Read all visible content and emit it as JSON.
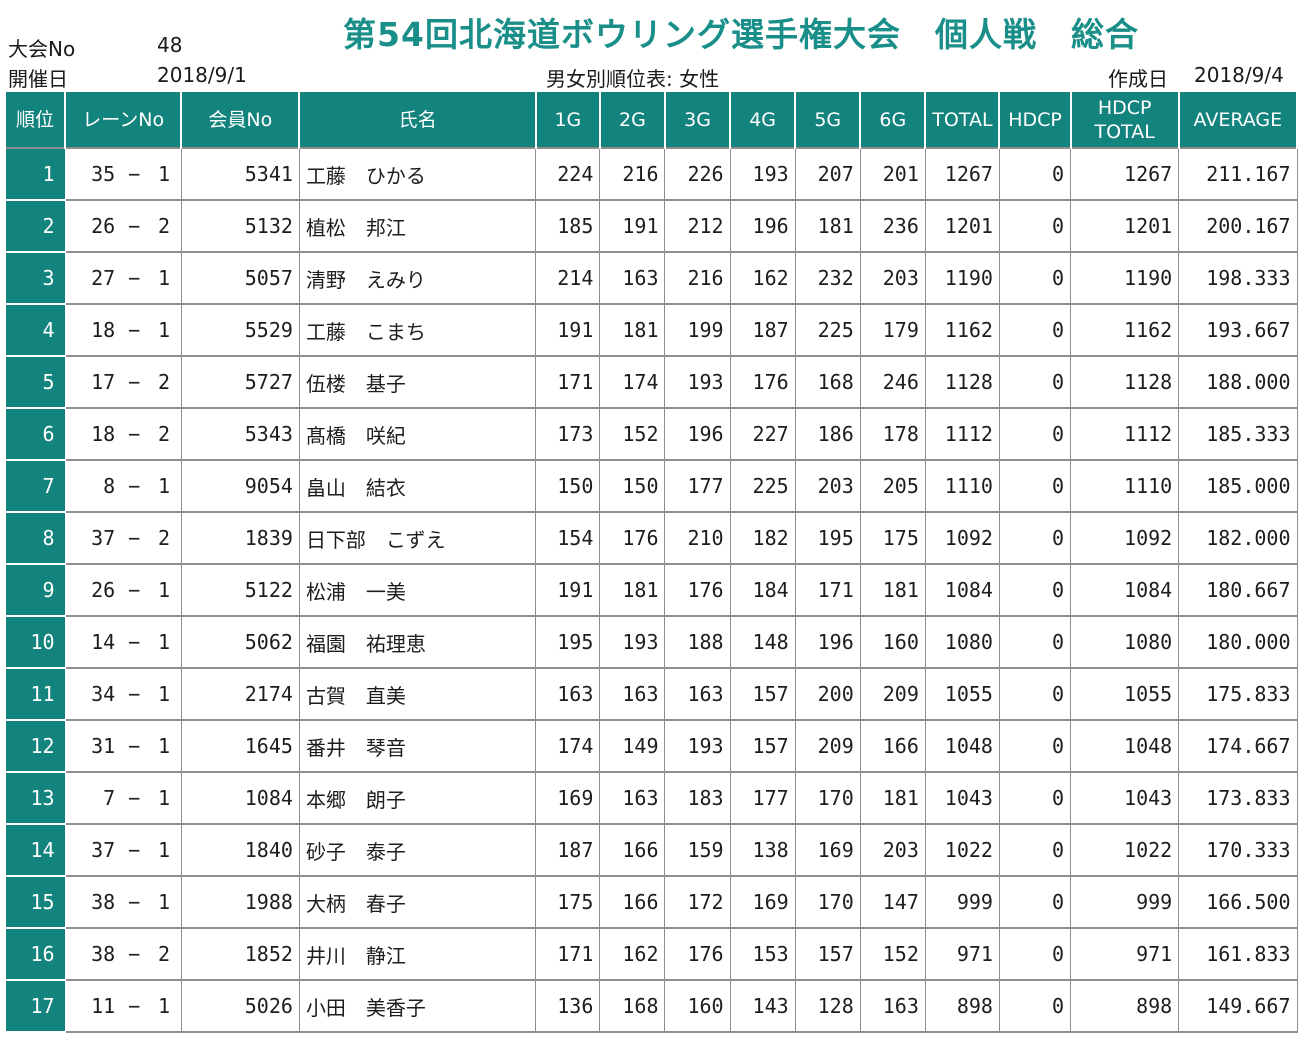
{
  "title": "第54回北海道ボウリング選手権大会　個人戦　総合",
  "meta": {
    "tournament_no_label": "大会No",
    "tournament_no": "48",
    "date_label": "開催日",
    "date": "2018/9/1",
    "ranking_label": "男女別順位表: 女性",
    "created_label": "作成日",
    "created_date": "2018/9/4"
  },
  "columns": [
    "順位",
    "レーンNo",
    "会員No",
    "氏名",
    "1G",
    "2G",
    "3G",
    "4G",
    "5G",
    "6G",
    "TOTAL",
    "HDCP",
    "HDCP\nTOTAL",
    "AVERAGE"
  ],
  "lane_separator": "−",
  "rows": [
    {
      "rank": "1",
      "lane": "35",
      "lane_no": "1",
      "member": "5341",
      "name": "工藤　ひかる",
      "g": [
        "224",
        "216",
        "226",
        "193",
        "207",
        "201"
      ],
      "total": "1267",
      "hdcp": "0",
      "hdcp_total": "1267",
      "average": "211.167"
    },
    {
      "rank": "2",
      "lane": "26",
      "lane_no": "2",
      "member": "5132",
      "name": "植松　邦江",
      "g": [
        "185",
        "191",
        "212",
        "196",
        "181",
        "236"
      ],
      "total": "1201",
      "hdcp": "0",
      "hdcp_total": "1201",
      "average": "200.167"
    },
    {
      "rank": "3",
      "lane": "27",
      "lane_no": "1",
      "member": "5057",
      "name": "清野　えみり",
      "g": [
        "214",
        "163",
        "216",
        "162",
        "232",
        "203"
      ],
      "total": "1190",
      "hdcp": "0",
      "hdcp_total": "1190",
      "average": "198.333"
    },
    {
      "rank": "4",
      "lane": "18",
      "lane_no": "1",
      "member": "5529",
      "name": "工藤　こまち",
      "g": [
        "191",
        "181",
        "199",
        "187",
        "225",
        "179"
      ],
      "total": "1162",
      "hdcp": "0",
      "hdcp_total": "1162",
      "average": "193.667"
    },
    {
      "rank": "5",
      "lane": "17",
      "lane_no": "2",
      "member": "5727",
      "name": "伍楼　基子",
      "g": [
        "171",
        "174",
        "193",
        "176",
        "168",
        "246"
      ],
      "total": "1128",
      "hdcp": "0",
      "hdcp_total": "1128",
      "average": "188.000"
    },
    {
      "rank": "6",
      "lane": "18",
      "lane_no": "2",
      "member": "5343",
      "name": "髙橋　咲紀",
      "g": [
        "173",
        "152",
        "196",
        "227",
        "186",
        "178"
      ],
      "total": "1112",
      "hdcp": "0",
      "hdcp_total": "1112",
      "average": "185.333"
    },
    {
      "rank": "7",
      "lane": "8",
      "lane_no": "1",
      "member": "9054",
      "name": "畠山　結衣",
      "g": [
        "150",
        "150",
        "177",
        "225",
        "203",
        "205"
      ],
      "total": "1110",
      "hdcp": "0",
      "hdcp_total": "1110",
      "average": "185.000"
    },
    {
      "rank": "8",
      "lane": "37",
      "lane_no": "2",
      "member": "1839",
      "name": "日下部　こずえ",
      "g": [
        "154",
        "176",
        "210",
        "182",
        "195",
        "175"
      ],
      "total": "1092",
      "hdcp": "0",
      "hdcp_total": "1092",
      "average": "182.000"
    },
    {
      "rank": "9",
      "lane": "26",
      "lane_no": "1",
      "member": "5122",
      "name": "松浦　一美",
      "g": [
        "191",
        "181",
        "176",
        "184",
        "171",
        "181"
      ],
      "total": "1084",
      "hdcp": "0",
      "hdcp_total": "1084",
      "average": "180.667"
    },
    {
      "rank": "10",
      "lane": "14",
      "lane_no": "1",
      "member": "5062",
      "name": "福園　祐理恵",
      "g": [
        "195",
        "193",
        "188",
        "148",
        "196",
        "160"
      ],
      "total": "1080",
      "hdcp": "0",
      "hdcp_total": "1080",
      "average": "180.000"
    },
    {
      "rank": "11",
      "lane": "34",
      "lane_no": "1",
      "member": "2174",
      "name": "古賀　直美",
      "g": [
        "163",
        "163",
        "163",
        "157",
        "200",
        "209"
      ],
      "total": "1055",
      "hdcp": "0",
      "hdcp_total": "1055",
      "average": "175.833"
    },
    {
      "rank": "12",
      "lane": "31",
      "lane_no": "1",
      "member": "1645",
      "name": "番井　琴音",
      "g": [
        "174",
        "149",
        "193",
        "157",
        "209",
        "166"
      ],
      "total": "1048",
      "hdcp": "0",
      "hdcp_total": "1048",
      "average": "174.667"
    },
    {
      "rank": "13",
      "lane": "7",
      "lane_no": "1",
      "member": "1084",
      "name": "本郷　朗子",
      "g": [
        "169",
        "163",
        "183",
        "177",
        "170",
        "181"
      ],
      "total": "1043",
      "hdcp": "0",
      "hdcp_total": "1043",
      "average": "173.833"
    },
    {
      "rank": "14",
      "lane": "37",
      "lane_no": "1",
      "member": "1840",
      "name": "砂子　泰子",
      "g": [
        "187",
        "166",
        "159",
        "138",
        "169",
        "203"
      ],
      "total": "1022",
      "hdcp": "0",
      "hdcp_total": "1022",
      "average": "170.333"
    },
    {
      "rank": "15",
      "lane": "38",
      "lane_no": "1",
      "member": "1988",
      "name": "大柄　春子",
      "g": [
        "175",
        "166",
        "172",
        "169",
        "170",
        "147"
      ],
      "total": "999",
      "hdcp": "0",
      "hdcp_total": "999",
      "average": "166.500"
    },
    {
      "rank": "16",
      "lane": "38",
      "lane_no": "2",
      "member": "1852",
      "name": "井川　静江",
      "g": [
        "171",
        "162",
        "176",
        "153",
        "157",
        "152"
      ],
      "total": "971",
      "hdcp": "0",
      "hdcp_total": "971",
      "average": "161.833"
    },
    {
      "rank": "17",
      "lane": "11",
      "lane_no": "1",
      "member": "5026",
      "name": "小田　美香子",
      "g": [
        "136",
        "168",
        "160",
        "143",
        "128",
        "163"
      ],
      "total": "898",
      "hdcp": "0",
      "hdcp_total": "898",
      "average": "149.667"
    }
  ]
}
